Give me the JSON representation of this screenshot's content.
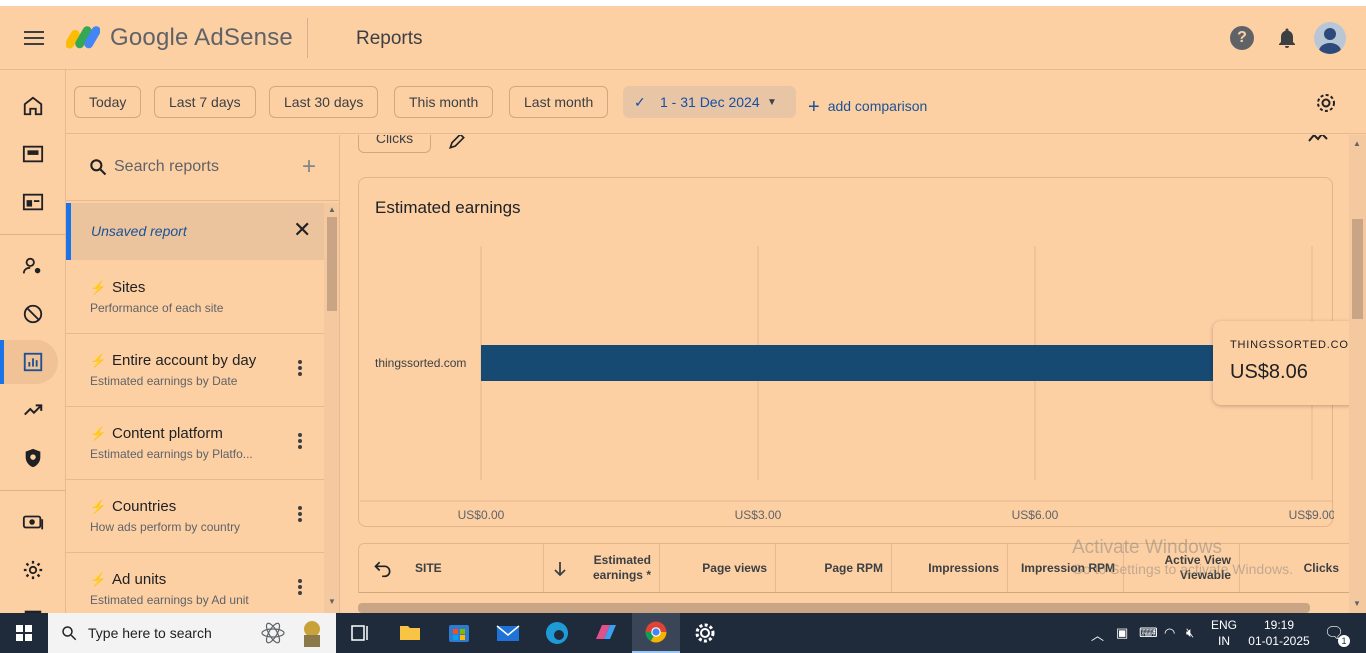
{
  "app": {
    "brand_name": "Google AdSense",
    "page_title": "Reports"
  },
  "filters": {
    "chips": [
      "Today",
      "Last 7 days",
      "Last 30 days",
      "This month",
      "Last month"
    ],
    "selected_range": "1 - 31 Dec 2024",
    "add_comparison": "add comparison"
  },
  "reports_panel": {
    "search_placeholder": "Search reports",
    "unsaved_label": "Unsaved report",
    "items": [
      {
        "title": "Sites",
        "subtitle": "Performance of each site"
      },
      {
        "title": "Entire account by day",
        "subtitle": "Estimated earnings by Date"
      },
      {
        "title": "Content platform",
        "subtitle": "Estimated earnings by Platfo..."
      },
      {
        "title": "Countries",
        "subtitle": "How ads perform by country"
      },
      {
        "title": "Ad units",
        "subtitle": "Estimated earnings by Ad unit"
      }
    ]
  },
  "main": {
    "metric_chip": "Clicks"
  },
  "chart_data": {
    "type": "bar",
    "orientation": "horizontal",
    "title": "Estimated earnings",
    "categories": [
      "thingssorted.com"
    ],
    "values": [
      8.06
    ],
    "xlim": [
      0,
      9
    ],
    "x_ticks": [
      "US$0.00",
      "US$3.00",
      "US$6.00",
      "US$9.00"
    ],
    "bar_color": "#174a73",
    "grid": true
  },
  "tooltip": {
    "site": "THINGSSORTED.COM",
    "value": "US$8.06"
  },
  "table": {
    "headers": {
      "site": "SITE",
      "earnings": "Estimated earnings *",
      "page_views": "Page views",
      "page_rpm": "Page RPM",
      "impressions": "Impressions",
      "impression_rpm": "Impression RPM",
      "active_view": "Active View Viewable",
      "clicks": "Clicks"
    }
  },
  "watermark": {
    "line1": "Activate Windows",
    "line2": "Go to Settings to activate Windows."
  },
  "taskbar": {
    "search_placeholder": "Type here to search",
    "lang": "ENG",
    "region": "IN",
    "time": "19:19",
    "date": "01-01-2025",
    "notif_count": "1"
  }
}
